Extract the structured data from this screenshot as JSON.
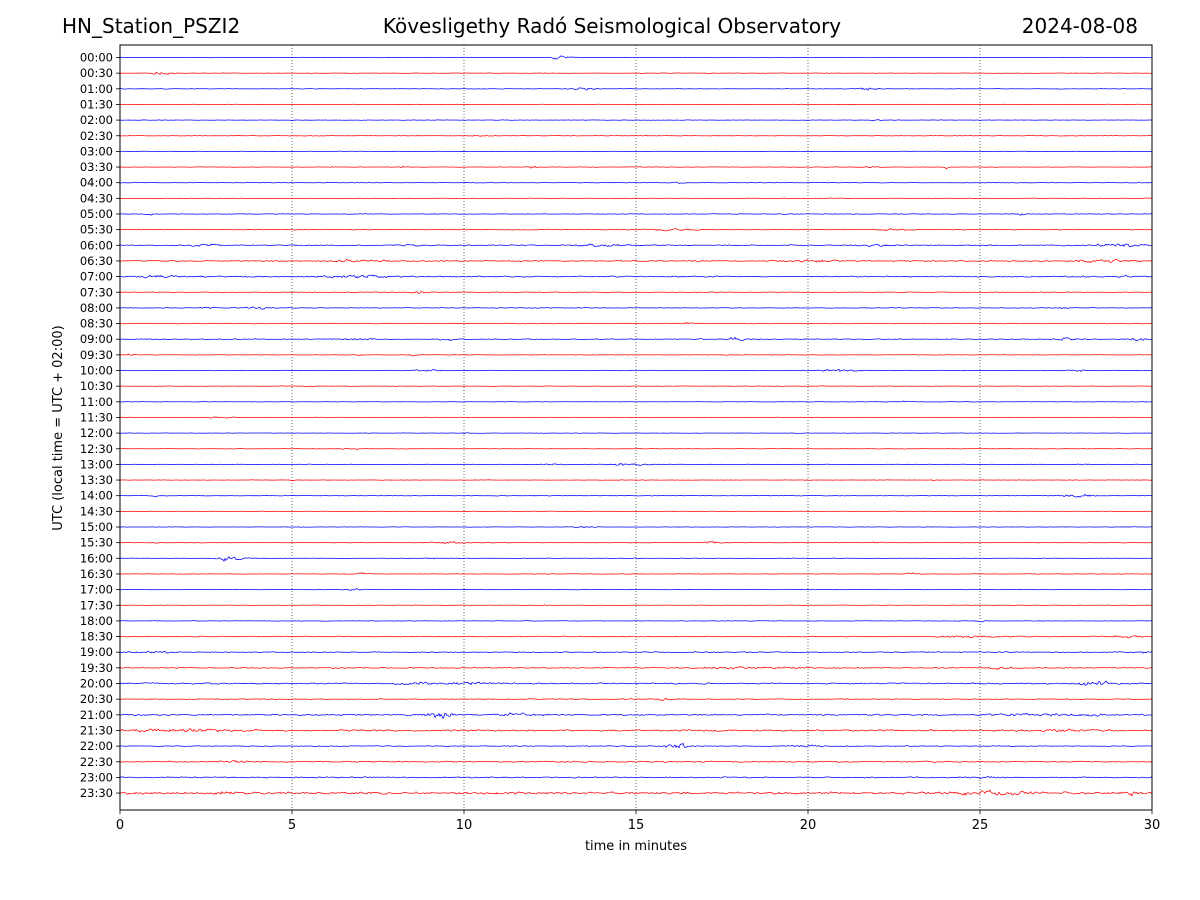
{
  "chart_data": {
    "type": "line",
    "title_left": "HN_Station_PSZI2",
    "title": "Kövesligethy Radó Seismological Observatory",
    "title_right": "2024-08-08",
    "xlabel": "time in minutes",
    "ylabel": "UTC (local time = UTC + 02:00)",
    "xlim": [
      0,
      30
    ],
    "xticks": [
      0,
      5,
      10,
      15,
      20,
      25,
      30
    ],
    "xtick_labels": [
      "0",
      "5",
      "10",
      "15",
      "20",
      "25",
      "30"
    ],
    "vertical_gridlines_at": [
      5,
      10,
      15,
      20,
      25
    ],
    "series_colors": {
      "even_rows": "#0000ff",
      "odd_rows": "#ff0000"
    },
    "rows": [
      {
        "label": "00:00",
        "noise": 0.3,
        "events": [
          [
            12.8,
            2.0,
            0.6
          ]
        ]
      },
      {
        "label": "00:30",
        "noise": 0.3,
        "events": [
          [
            1.2,
            2.5,
            0.5
          ]
        ]
      },
      {
        "label": "01:00",
        "noise": 0.3,
        "events": [
          [
            13.5,
            1.8,
            0.6
          ],
          [
            21.8,
            1.8,
            0.6
          ]
        ]
      },
      {
        "label": "01:30",
        "noise": 0.25,
        "events": []
      },
      {
        "label": "02:00",
        "noise": 0.25,
        "events": [
          [
            22.0,
            1.0,
            0.3
          ]
        ]
      },
      {
        "label": "02:30",
        "noise": 0.3,
        "events": [
          [
            10.5,
            1.2,
            0.5
          ]
        ]
      },
      {
        "label": "03:00",
        "noise": 0.25,
        "events": []
      },
      {
        "label": "03:30",
        "noise": 0.3,
        "events": [
          [
            6.2,
            2.0,
            0.1
          ],
          [
            8.2,
            1.5,
            0.1
          ],
          [
            12.0,
            1.5,
            0.4
          ],
          [
            21.8,
            1.4,
            0.4
          ],
          [
            24.0,
            2.5,
            0.1
          ]
        ]
      },
      {
        "label": "04:00",
        "noise": 0.3,
        "events": [
          [
            16.2,
            1.0,
            0.4
          ]
        ]
      },
      {
        "label": "04:30",
        "noise": 0.3,
        "events": []
      },
      {
        "label": "05:00",
        "noise": 0.4,
        "events": [
          [
            0.8,
            1.0,
            0.4
          ],
          [
            26.2,
            1.0,
            0.3
          ]
        ]
      },
      {
        "label": "05:30",
        "noise": 0.4,
        "events": [
          [
            16.0,
            1.0,
            2.0
          ],
          [
            22.5,
            1.2,
            1.0
          ]
        ]
      },
      {
        "label": "06:00",
        "noise": 0.6,
        "events": [
          [
            2.5,
            1.3,
            1.0
          ],
          [
            8.5,
            1.2,
            0.8
          ],
          [
            14.0,
            1.0,
            1.5
          ],
          [
            22.0,
            1.2,
            1.0
          ],
          [
            29.0,
            1.4,
            1.5
          ]
        ]
      },
      {
        "label": "06:30",
        "noise": 0.7,
        "events": [
          [
            7.0,
            1.3,
            1.5
          ],
          [
            20.0,
            1.2,
            1.5
          ],
          [
            28.5,
            1.4,
            1.5
          ]
        ]
      },
      {
        "label": "07:00",
        "noise": 0.7,
        "events": [
          [
            1.2,
            1.4,
            1.0
          ],
          [
            7.0,
            1.5,
            2.0
          ],
          [
            29.2,
            1.6,
            0.3
          ]
        ]
      },
      {
        "label": "07:30",
        "noise": 0.4,
        "events": [
          [
            8.7,
            2.0,
            0.4
          ]
        ]
      },
      {
        "label": "08:00",
        "noise": 0.4,
        "events": [
          [
            2.5,
            1.0,
            0.4
          ],
          [
            4.0,
            1.8,
            0.6
          ],
          [
            27.5,
            1.0,
            0.5
          ]
        ]
      },
      {
        "label": "08:30",
        "noise": 0.3,
        "events": [
          [
            16.5,
            1.5,
            0.3
          ]
        ]
      },
      {
        "label": "09:00",
        "noise": 0.5,
        "events": [
          [
            1.2,
            1.2,
            0.4
          ],
          [
            6.8,
            1.2,
            1.0
          ],
          [
            9.5,
            1.5,
            0.4
          ],
          [
            18.0,
            1.6,
            1.0
          ],
          [
            27.5,
            1.4,
            0.5
          ],
          [
            29.6,
            2.0,
            0.5
          ]
        ]
      },
      {
        "label": "09:30",
        "noise": 0.3,
        "events": [
          [
            0.3,
            1.2,
            0.2
          ],
          [
            7.0,
            1.0,
            0.2
          ],
          [
            8.5,
            1.6,
            0.2
          ]
        ]
      },
      {
        "label": "10:00",
        "noise": 0.3,
        "events": [
          [
            9.0,
            1.2,
            0.8
          ],
          [
            21.0,
            1.4,
            1.5
          ],
          [
            27.8,
            1.6,
            0.6
          ]
        ]
      },
      {
        "label": "10:30",
        "noise": 0.25,
        "events": [
          [
            5.5,
            1.0,
            0.3
          ]
        ]
      },
      {
        "label": "11:00",
        "noise": 0.25,
        "events": [
          [
            22.8,
            1.0,
            0.4
          ]
        ]
      },
      {
        "label": "11:30",
        "noise": 0.3,
        "events": [
          [
            2.8,
            1.2,
            1.0
          ]
        ]
      },
      {
        "label": "12:00",
        "noise": 0.25,
        "events": [
          [
            10.0,
            1.0,
            0.2
          ]
        ]
      },
      {
        "label": "12:30",
        "noise": 0.3,
        "events": [
          [
            6.7,
            1.2,
            0.4
          ]
        ]
      },
      {
        "label": "13:00",
        "noise": 0.3,
        "events": [
          [
            12.5,
            1.2,
            0.6
          ],
          [
            14.8,
            1.4,
            1.5
          ],
          [
            28.0,
            1.0,
            0.3
          ]
        ]
      },
      {
        "label": "13:30",
        "noise": 0.25,
        "events": [
          [
            5.0,
            1.5,
            0.1
          ],
          [
            23.6,
            2.0,
            0.1
          ]
        ]
      },
      {
        "label": "14:00",
        "noise": 0.3,
        "events": [
          [
            1.0,
            1.0,
            0.3
          ],
          [
            27.8,
            1.6,
            1.2
          ]
        ]
      },
      {
        "label": "14:30",
        "noise": 0.25,
        "events": [
          [
            26.2,
            1.2,
            0.1
          ]
        ]
      },
      {
        "label": "15:00",
        "noise": 0.25,
        "events": [
          [
            13.5,
            1.2,
            0.6
          ]
        ]
      },
      {
        "label": "15:30",
        "noise": 0.3,
        "events": [
          [
            1.0,
            1.0,
            0.2
          ],
          [
            9.5,
            1.4,
            1.0
          ],
          [
            17.2,
            1.5,
            0.5
          ],
          [
            22.0,
            1.0,
            0.3
          ]
        ]
      },
      {
        "label": "16:00",
        "noise": 0.3,
        "events": [
          [
            3.2,
            4.0,
            0.6
          ],
          [
            9.0,
            1.0,
            0.4
          ],
          [
            15.0,
            1.0,
            0.2
          ]
        ]
      },
      {
        "label": "16:30",
        "noise": 0.3,
        "events": [
          [
            7.0,
            1.0,
            0.5
          ],
          [
            23.0,
            1.0,
            0.5
          ]
        ]
      },
      {
        "label": "17:00",
        "noise": 0.25,
        "events": [
          [
            6.8,
            1.2,
            0.5
          ]
        ]
      },
      {
        "label": "17:30",
        "noise": 0.25,
        "events": [
          [
            12.3,
            1.5,
            0.3
          ]
        ]
      },
      {
        "label": "18:00",
        "noise": 0.3,
        "events": [
          [
            25.0,
            1.0,
            0.4
          ]
        ]
      },
      {
        "label": "18:30",
        "noise": 0.5,
        "events": [
          [
            25.0,
            1.2,
            2.0
          ],
          [
            29.3,
            1.4,
            1.0
          ]
        ]
      },
      {
        "label": "19:00",
        "noise": 0.6,
        "events": [
          [
            1.0,
            1.8,
            1.0
          ],
          [
            29.7,
            1.3,
            0.3
          ]
        ]
      },
      {
        "label": "19:30",
        "noise": 0.6,
        "events": [
          [
            18.5,
            1.0,
            3.0
          ],
          [
            25.5,
            1.3,
            0.8
          ]
        ]
      },
      {
        "label": "20:00",
        "noise": 0.8,
        "events": [
          [
            8.5,
            1.8,
            1.0
          ],
          [
            10.2,
            1.6,
            1.0
          ],
          [
            28.4,
            2.8,
            0.8
          ]
        ]
      },
      {
        "label": "20:30",
        "noise": 0.5,
        "events": [
          [
            15.8,
            1.4,
            0.4
          ]
        ]
      },
      {
        "label": "21:00",
        "noise": 0.8,
        "events": [
          [
            9.3,
            3.5,
            0.8
          ],
          [
            11.5,
            1.2,
            1.5
          ],
          [
            27.0,
            1.4,
            3.0
          ]
        ]
      },
      {
        "label": "21:30",
        "noise": 1.0,
        "events": [
          [
            1.5,
            1.5,
            3.0
          ],
          [
            27.5,
            1.5,
            1.0
          ]
        ]
      },
      {
        "label": "22:00",
        "noise": 0.5,
        "events": [
          [
            16.2,
            3.5,
            0.6
          ],
          [
            20.0,
            1.2,
            1.2
          ]
        ]
      },
      {
        "label": "22:30",
        "noise": 0.7,
        "events": [
          [
            3.5,
            1.2,
            1.0
          ]
        ]
      },
      {
        "label": "23:00",
        "noise": 0.7,
        "events": [
          [
            25.0,
            1.4,
            0.6
          ]
        ]
      },
      {
        "label": "23:30",
        "noise": 1.3,
        "events": [
          [
            3.0,
            1.4,
            0.4
          ],
          [
            25.3,
            2.5,
            2.0
          ],
          [
            29.5,
            2.5,
            0.4
          ]
        ]
      }
    ]
  }
}
